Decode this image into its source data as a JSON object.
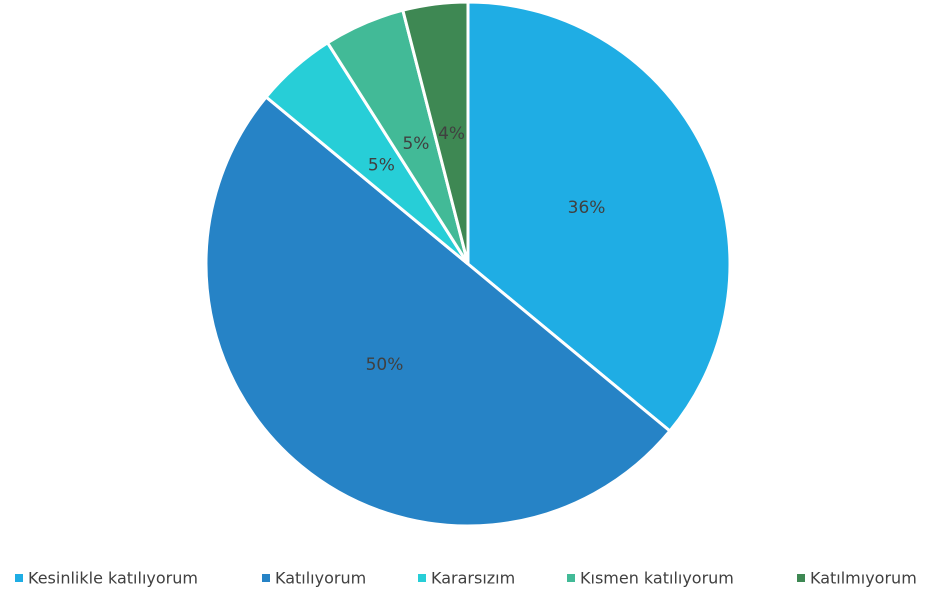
{
  "chart_data": {
    "type": "pie",
    "categories": [
      "Kesinlikle katılıyorum",
      "Katılıyorum",
      "Kararsızım",
      "Kısmen katılıyorum",
      "Katılmıyorum"
    ],
    "values": [
      36,
      50,
      5,
      5,
      4
    ],
    "value_labels": [
      "36%",
      "50%",
      "5%",
      "5%",
      "4%"
    ],
    "colors": [
      "#1fade4",
      "#2683c6",
      "#27ced7",
      "#42ba97",
      "#3e8853"
    ],
    "legend": "bottom"
  }
}
